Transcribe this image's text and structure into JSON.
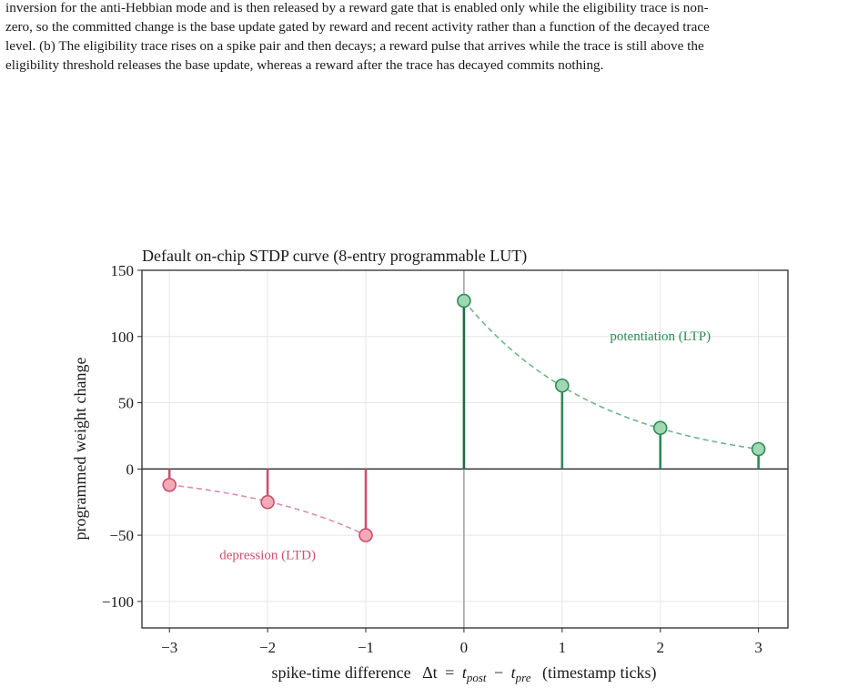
{
  "caption": {
    "lines": [
      "inversion for the anti-Hebbian mode and is then released by a reward gate that is enabled only while the eligibility trace is non-",
      "zero, so the committed change is the base update gated by reward and recent activity rather than a function of the decayed trace",
      "level. (b) The eligibility trace rises on a spike pair and then decays; a reward pulse that arrives while the trace is still above the",
      "eligibility threshold releases the base update, whereas a reward after the trace has decayed commits nothing."
    ]
  },
  "chart_data": {
    "type": "stem",
    "title": "Default on-chip STDP curve (8-entry programmable LUT)",
    "xlabel": {
      "prefix": "spike-time difference",
      "symbol": "Δt",
      "eq": "=",
      "t1": "t",
      "sub1": "post",
      "minus": "−",
      "t2": "t",
      "sub2": "pre",
      "suffix": "(timestamp ticks)"
    },
    "ylabel": "programmed weight change",
    "xlim": [
      -3.28,
      3.3
    ],
    "ylim": [
      -120,
      150
    ],
    "xticks": [
      -3,
      -2,
      -1,
      0,
      1,
      2,
      3
    ],
    "xtick_labels": [
      "−3",
      "−2",
      "−1",
      "0",
      "1",
      "2",
      "3"
    ],
    "yticks": [
      -100,
      -50,
      0,
      50,
      100,
      150
    ],
    "ytick_labels": [
      "−100",
      "−50",
      "0",
      "50",
      "100",
      "150"
    ],
    "grid": true,
    "series": [
      {
        "name": "depression (LTD)",
        "x": [
          -3,
          -2,
          -1
        ],
        "y": [
          -12,
          -25,
          -50
        ],
        "color": "#c9506f",
        "marker_fill": "#f4a9b6",
        "fit_color": "#dc8fa2"
      },
      {
        "name": "potentiation (LTP)",
        "x": [
          0,
          1,
          2,
          3
        ],
        "y": [
          127,
          63,
          31,
          15
        ],
        "color": "#2e8b57",
        "stem_color_first": "#1f6a45",
        "marker_fill": "#9fd8b3",
        "fit_color": "#6fb48b"
      }
    ],
    "annotations": [
      {
        "text": "potentiation (LTP)",
        "x": 2.0,
        "y": 97,
        "color": "#2e8b57"
      },
      {
        "text": "depression (LTD)",
        "x": -2.0,
        "y": -68,
        "color": "#c9506f"
      }
    ]
  }
}
